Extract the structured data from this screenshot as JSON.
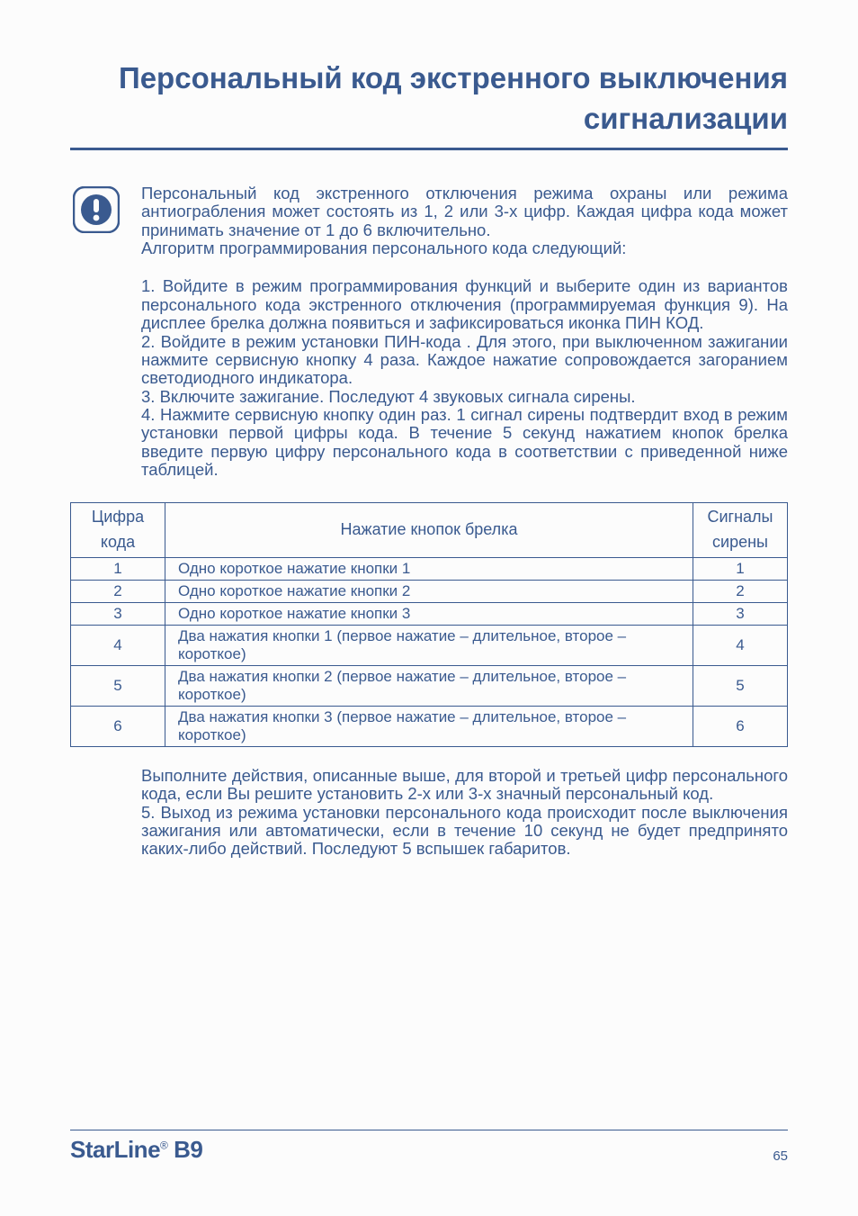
{
  "title": "Персональный код экстренного выключения сигнализации",
  "intro": "Персональный код экстренного отключения режима охраны или режима антиограбления может состоять из 1, 2 или 3-х цифр. Каждая цифра кода может принимать значение от 1 до 6 включительно.\nАлгоритм программирования персонального кода следующий:",
  "steps": "1. Войдите в режим программирования функций и выберите один из вариантов персонального кода экстренного отключения (программируемая функция 9). На дисплее брелка должна появиться и зафиксироваться иконка ПИН КОД.\n2. Войдите в режим установки ПИН-кода . Для этого, при выключенном зажигании нажмите сервисную кнопку 4 раза. Каждое нажатие сопровождается загоранием светодиодного индикатора.\n3. Включите зажигание. Последуют 4 звуковых сигнала сирены.\n4. Нажмите сервисную кнопку один раз. 1 сигнал сирены подтвердит вход в режим установки первой цифры кода. В течение 5 секунд нажатием кнопок брелка введите первую цифру персонального кода в соответствии с приведенной ниже таблицей.",
  "table": {
    "headers": {
      "c1": "Цифра\nкода",
      "c2": "Нажатие кнопок брелка",
      "c3": "Сигналы\nсирены"
    },
    "rows": [
      {
        "d": "1",
        "press": "Одно короткое нажатие кнопки 1",
        "s": "1"
      },
      {
        "d": "2",
        "press": "Одно короткое нажатие кнопки 2",
        "s": "2"
      },
      {
        "d": "3",
        "press": "Одно короткое нажатие кнопки 3",
        "s": "3"
      },
      {
        "d": "4",
        "press": "Два нажатия кнопки 1 (первое нажатие – длительное, второе – короткое)",
        "s": "4"
      },
      {
        "d": "5",
        "press": "Два нажатия кнопки 2 (первое нажатие – длительное, второе – короткое)",
        "s": "5"
      },
      {
        "d": "6",
        "press": "Два нажатия кнопки 3 (первое нажатие – длительное, второе – короткое)",
        "s": "6"
      }
    ]
  },
  "after": "Выполните действия, описанные выше, для второй и третьей цифр персонального кода, если Вы решите установить 2-х или 3-х значный персональный код.\n5. Выход из режима установки персонального кода происходит после выключения зажигания или автоматически, если в течение 10 секунд не будет предпринято каких-либо действий. Последуют 5 вспышек габаритов.",
  "footer": {
    "brand": "StarLine",
    "model": "B9",
    "page": "65"
  },
  "colors": {
    "text": "#3a5a8f",
    "bg": "#fcfcfc"
  }
}
